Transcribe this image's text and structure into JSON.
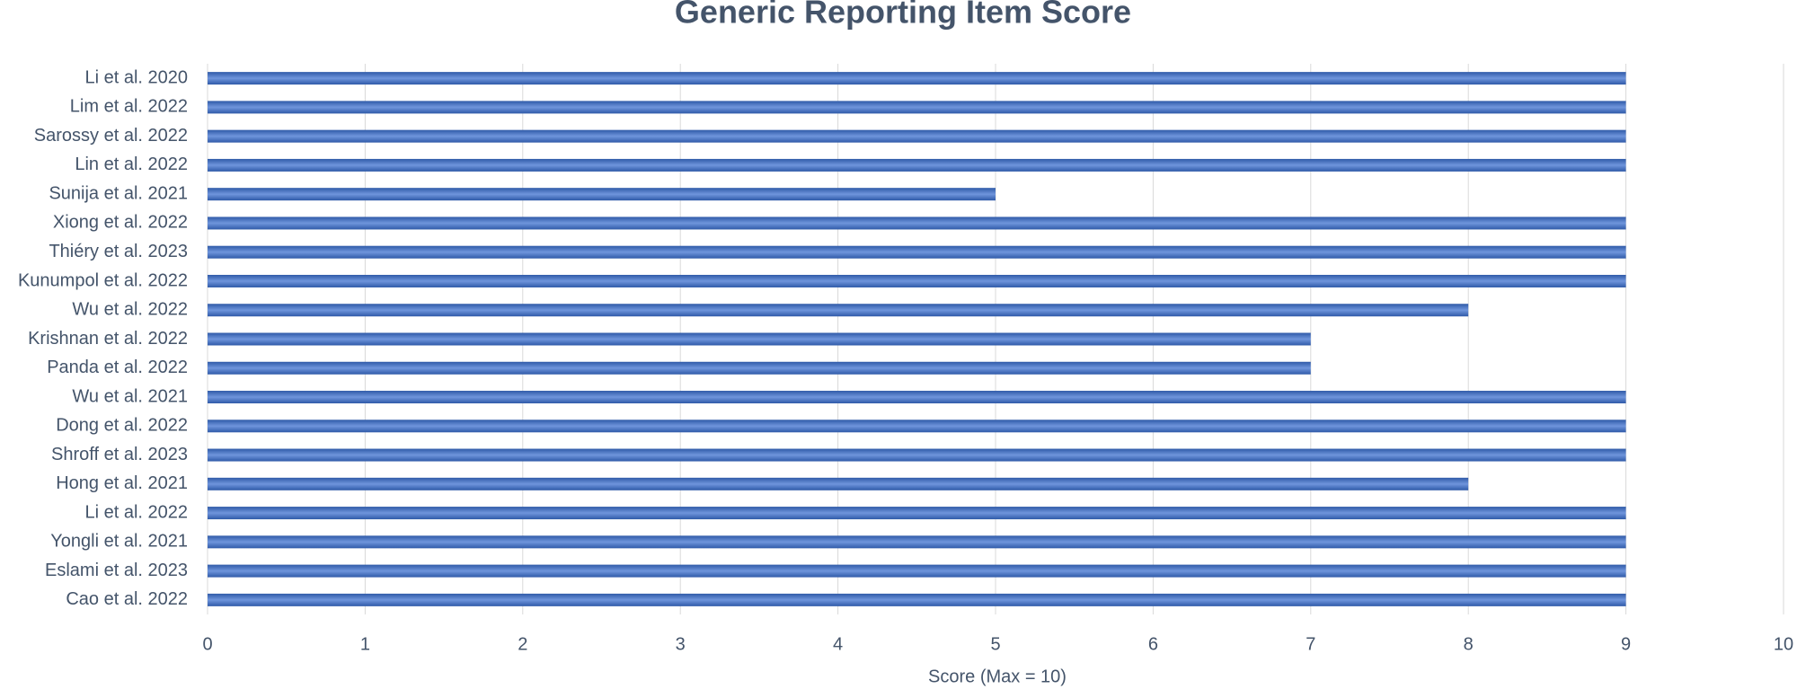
{
  "chart_data": {
    "type": "bar",
    "orientation": "horizontal",
    "title": "Generic Reporting Item Score",
    "x_label": "Score (Max = 10)",
    "categories": [
      "Li et al. 2020",
      "Lim et al. 2022",
      "Sarossy et al. 2022",
      "Lin et al. 2022",
      "Sunija et al. 2021",
      "Xiong et al. 2022",
      "Thiéry et al. 2023",
      "Kunumpol et al. 2022",
      "Wu et al. 2022",
      "Krishnan et al. 2022",
      "Panda et al. 2022",
      "Wu et al. 2021",
      "Dong et al. 2022",
      "Shroff et al. 2023",
      "Hong et al. 2021",
      "Li et al. 2022",
      "Yongli et al. 2021",
      "Eslami et al. 2023",
      "Cao et al. 2022"
    ],
    "values": [
      9,
      9,
      9,
      9,
      5,
      9,
      9,
      9,
      8,
      7,
      7,
      9,
      9,
      9,
      8,
      9,
      9,
      9,
      9
    ],
    "color": "#4472c4",
    "xlim": [
      0,
      10
    ],
    "xticks": [
      0,
      1,
      2,
      3,
      4,
      5,
      6,
      7,
      8,
      9,
      10
    ],
    "grid": true
  }
}
